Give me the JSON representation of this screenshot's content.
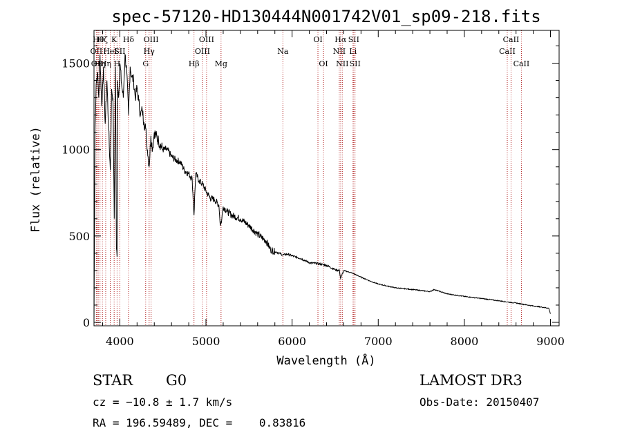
{
  "chart_data": {
    "type": "line",
    "title": "spec-57120-HD130444N001742V01_sp09-218.fits",
    "xlabel": "Wavelength (Å)",
    "ylabel": "Flux (relative)",
    "xlim": [
      3700,
      9100
    ],
    "ylim": [
      -20,
      1690
    ],
    "x_ticks": [
      4000,
      5000,
      6000,
      7000,
      8000,
      9000
    ],
    "x_tick_labels": [
      "4000",
      "5000",
      "6000",
      "7000",
      "8000",
      "9000"
    ],
    "y_ticks": [
      0,
      500,
      1000,
      1500
    ],
    "y_tick_labels": [
      "0",
      "500",
      "1000",
      "1500"
    ],
    "line_color": "#000000",
    "marker_color": "#b22222",
    "series": [
      {
        "name": "flux",
        "x": [
          3700,
          3712,
          3725,
          3740,
          3755,
          3770,
          3790,
          3810,
          3830,
          3850,
          3870,
          3889,
          3905,
          3920,
          3935,
          3950,
          3960,
          3968,
          3975,
          3985,
          4000,
          4020,
          4040,
          4060,
          4080,
          4101,
          4120,
          4140,
          4160,
          4180,
          4200,
          4220,
          4240,
          4260,
          4280,
          4300,
          4320,
          4340,
          4360,
          4380,
          4400,
          4450,
          4500,
          4550,
          4600,
          4650,
          4700,
          4750,
          4800,
          4840,
          4861,
          4880,
          4920,
          4960,
          5000,
          5050,
          5100,
          5150,
          5167,
          5184,
          5200,
          5250,
          5300,
          5400,
          5500,
          5600,
          5700,
          5750,
          5800,
          5850,
          5890,
          5950,
          6000,
          6100,
          6200,
          6300,
          6400,
          6500,
          6550,
          6563,
          6600,
          6700,
          6800,
          6900,
          7000,
          7200,
          7400,
          7600,
          7650,
          7800,
          8000,
          8200,
          8400,
          8500,
          8600,
          8700,
          8800,
          8900,
          8980,
          9000
        ],
        "y": [
          0,
          1120,
          1380,
          1450,
          1300,
          1550,
          1250,
          1480,
          1150,
          1400,
          1120,
          880,
          1350,
          1300,
          600,
          1480,
          430,
          380,
          1400,
          1300,
          1500,
          1380,
          1300,
          1550,
          1450,
          1200,
          1480,
          1420,
          1400,
          1300,
          1360,
          1280,
          1200,
          1230,
          1160,
          1120,
          1000,
          900,
          1080,
          1000,
          1100,
          1050,
          1000,
          1000,
          960,
          940,
          930,
          880,
          860,
          830,
          620,
          860,
          820,
          800,
          760,
          720,
          710,
          680,
          560,
          600,
          670,
          640,
          620,
          600,
          560,
          510,
          470,
          420,
          410,
          400,
          390,
          395,
          385,
          370,
          345,
          340,
          330,
          305,
          300,
          255,
          300,
          285,
          262,
          240,
          222,
          200,
          190,
          178,
          190,
          165,
          150,
          138,
          125,
          118,
          112,
          103,
          95,
          88,
          82,
          50
        ]
      }
    ],
    "line_markers": [
      {
        "x": 3727,
        "label": "OII",
        "row": 2
      },
      {
        "x": 3737,
        "label": "OII",
        "row": 3
      },
      {
        "x": 3750,
        "label": "Hθ",
        "row": 1
      },
      {
        "x": 3770,
        "label": "Hη",
        "row": 3
      },
      {
        "x": 3798,
        "label": "Hζ",
        "row": 1
      },
      {
        "x": 3836,
        "label": "Hη",
        "row": 3
      },
      {
        "x": 3889,
        "label": "HeI",
        "row": 2
      },
      {
        "x": 3934,
        "label": "K",
        "row": 1
      },
      {
        "x": 3968,
        "label": "H",
        "row": 3
      },
      {
        "x": 4000,
        "label": "SII",
        "row": 2
      },
      {
        "x": 4101,
        "label": "Hδ",
        "row": 1
      },
      {
        "x": 4300,
        "label": "G",
        "row": 3
      },
      {
        "x": 4340,
        "label": "Hγ",
        "row": 2
      },
      {
        "x": 4363,
        "label": "OIII",
        "row": 1
      },
      {
        "x": 4861,
        "label": "Hβ",
        "row": 3
      },
      {
        "x": 4959,
        "label": "OIII",
        "row": 2
      },
      {
        "x": 5007,
        "label": "OIII",
        "row": 1
      },
      {
        "x": 5175,
        "label": "Mg",
        "row": 3
      },
      {
        "x": 5893,
        "label": "Na",
        "row": 2
      },
      {
        "x": 6300,
        "label": "OI",
        "row": 1
      },
      {
        "x": 6364,
        "label": "OI",
        "row": 3
      },
      {
        "x": 6548,
        "label": "NII",
        "row": 2
      },
      {
        "x": 6563,
        "label": "Hα",
        "row": 1
      },
      {
        "x": 6583,
        "label": "NII",
        "row": 3
      },
      {
        "x": 6707,
        "label": "Li",
        "row": 2
      },
      {
        "x": 6716,
        "label": "SII",
        "row": 1
      },
      {
        "x": 6731,
        "label": "SII",
        "row": 3
      },
      {
        "x": 8498,
        "label": "CaII",
        "row": 2
      },
      {
        "x": 8542,
        "label": "CaII",
        "row": 1
      },
      {
        "x": 8662,
        "label": "CaII",
        "row": 3
      }
    ]
  },
  "info": {
    "object_class": "STAR",
    "subclass": "G0",
    "survey": "LAMOST DR3",
    "redshift": "cz = −10.8 ± 1.7 km/s",
    "obs_date": "Obs-Date: 20150407",
    "coords": "RA = 196.59489, DEC =    0.83816"
  }
}
